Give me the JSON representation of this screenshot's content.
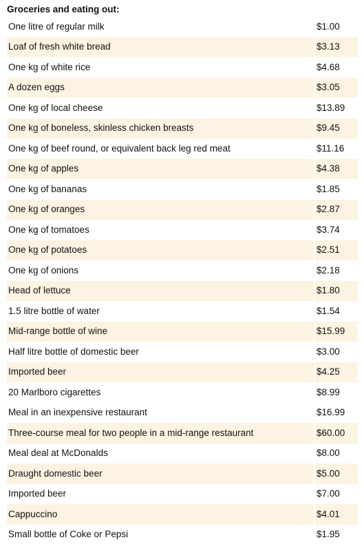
{
  "section_title": "Groceries and eating out:",
  "rows": [
    {
      "item": "One litre of regular milk",
      "price": "$1.00",
      "shaded": false
    },
    {
      "item": "Loaf of fresh white bread",
      "price": "$3.13",
      "shaded": true
    },
    {
      "item": "One kg of white rice",
      "price": "$4.68",
      "shaded": false
    },
    {
      "item": "A dozen eggs",
      "price": "$3.05",
      "shaded": true
    },
    {
      "item": "One kg of local cheese",
      "price": "$13.89",
      "shaded": false
    },
    {
      "item": "One kg of boneless, skinless chicken breasts",
      "price": "$9.45",
      "shaded": true
    },
    {
      "item": "One kg of beef round, or equivalent back leg red meat",
      "price": "$11.16",
      "shaded": false
    },
    {
      "item": "One kg of apples",
      "price": "$4.38",
      "shaded": true
    },
    {
      "item": "One kg of bananas",
      "price": "$1.85",
      "shaded": false
    },
    {
      "item": "One kg of oranges",
      "price": "$2.87",
      "shaded": true
    },
    {
      "item": "One kg of tomatoes",
      "price": "$3.74",
      "shaded": false
    },
    {
      "item": "One kg of potatoes",
      "price": "$2.51",
      "shaded": true
    },
    {
      "item": "One kg of onions",
      "price": "$2.18",
      "shaded": false
    },
    {
      "item": "Head of lettuce",
      "price": "$1.80",
      "shaded": true
    },
    {
      "item": "1.5 litre bottle of water",
      "price": "$1.54",
      "shaded": false
    },
    {
      "item": "Mid-range bottle of wine",
      "price": "$15.99",
      "shaded": true
    },
    {
      "item": "Half litre bottle of domestic beer",
      "price": "$3.00",
      "shaded": false
    },
    {
      "item": "Imported beer",
      "price": "$4.25",
      "shaded": true
    },
    {
      "item": "20 Marlboro cigarettes",
      "price": "$8.99",
      "shaded": false
    },
    {
      "item": "Meal in an inexpensive restaurant",
      "price": "$16.99",
      "shaded": false
    },
    {
      "item": "Three-course meal for two people in a mid-range restaurant",
      "price": "$60.00",
      "shaded": true
    },
    {
      "item": "Meal deal at McDonalds",
      "price": "$8.00",
      "shaded": false
    },
    {
      "item": "Draught domestic beer",
      "price": "$5.00",
      "shaded": true
    },
    {
      "item": "Imported beer",
      "price": "$7.00",
      "shaded": false
    },
    {
      "item": "Cappuccino",
      "price": "$4.01",
      "shaded": true
    },
    {
      "item": "Small bottle of Coke or Pepsi",
      "price": "$1.95",
      "shaded": false
    }
  ],
  "colors": {
    "row_shade": "#fdf3e2",
    "text": "#111111",
    "background": "#ffffff"
  }
}
